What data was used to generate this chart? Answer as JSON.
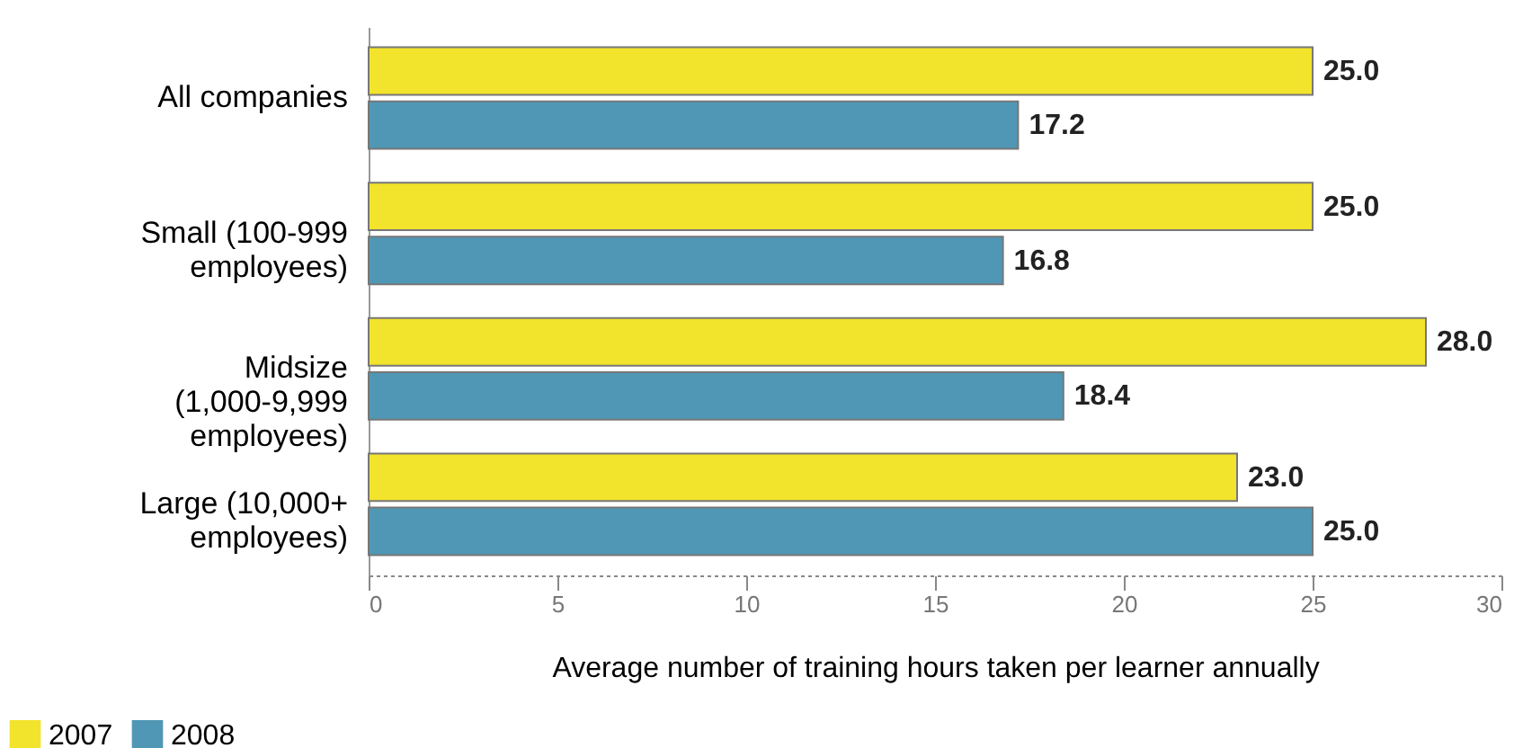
{
  "chart_data": {
    "type": "bar",
    "orientation": "horizontal",
    "xlabel": "Average number of training hours taken per learner annually",
    "categories": [
      "All companies",
      "Small (100-999 employees)",
      "Midsize (1,000-9,999 employees)",
      "Large (10,000+ employees)"
    ],
    "series": [
      {
        "name": "2007",
        "color": "#f2e32c",
        "values": [
          25.0,
          25.0,
          28.0,
          23.0
        ],
        "value_labels": [
          "25.0",
          "25.0",
          "28.0",
          "23.0"
        ]
      },
      {
        "name": "2008",
        "color": "#4f97b5",
        "values": [
          17.2,
          16.8,
          18.4,
          25.0
        ],
        "value_labels": [
          "17.2",
          "16.8",
          "18.4",
          "25.0"
        ]
      }
    ],
    "xlim": [
      0,
      30
    ],
    "xticks": [
      0,
      5,
      10,
      15,
      20,
      25,
      30
    ],
    "grid": false,
    "legend": "bottom left"
  }
}
